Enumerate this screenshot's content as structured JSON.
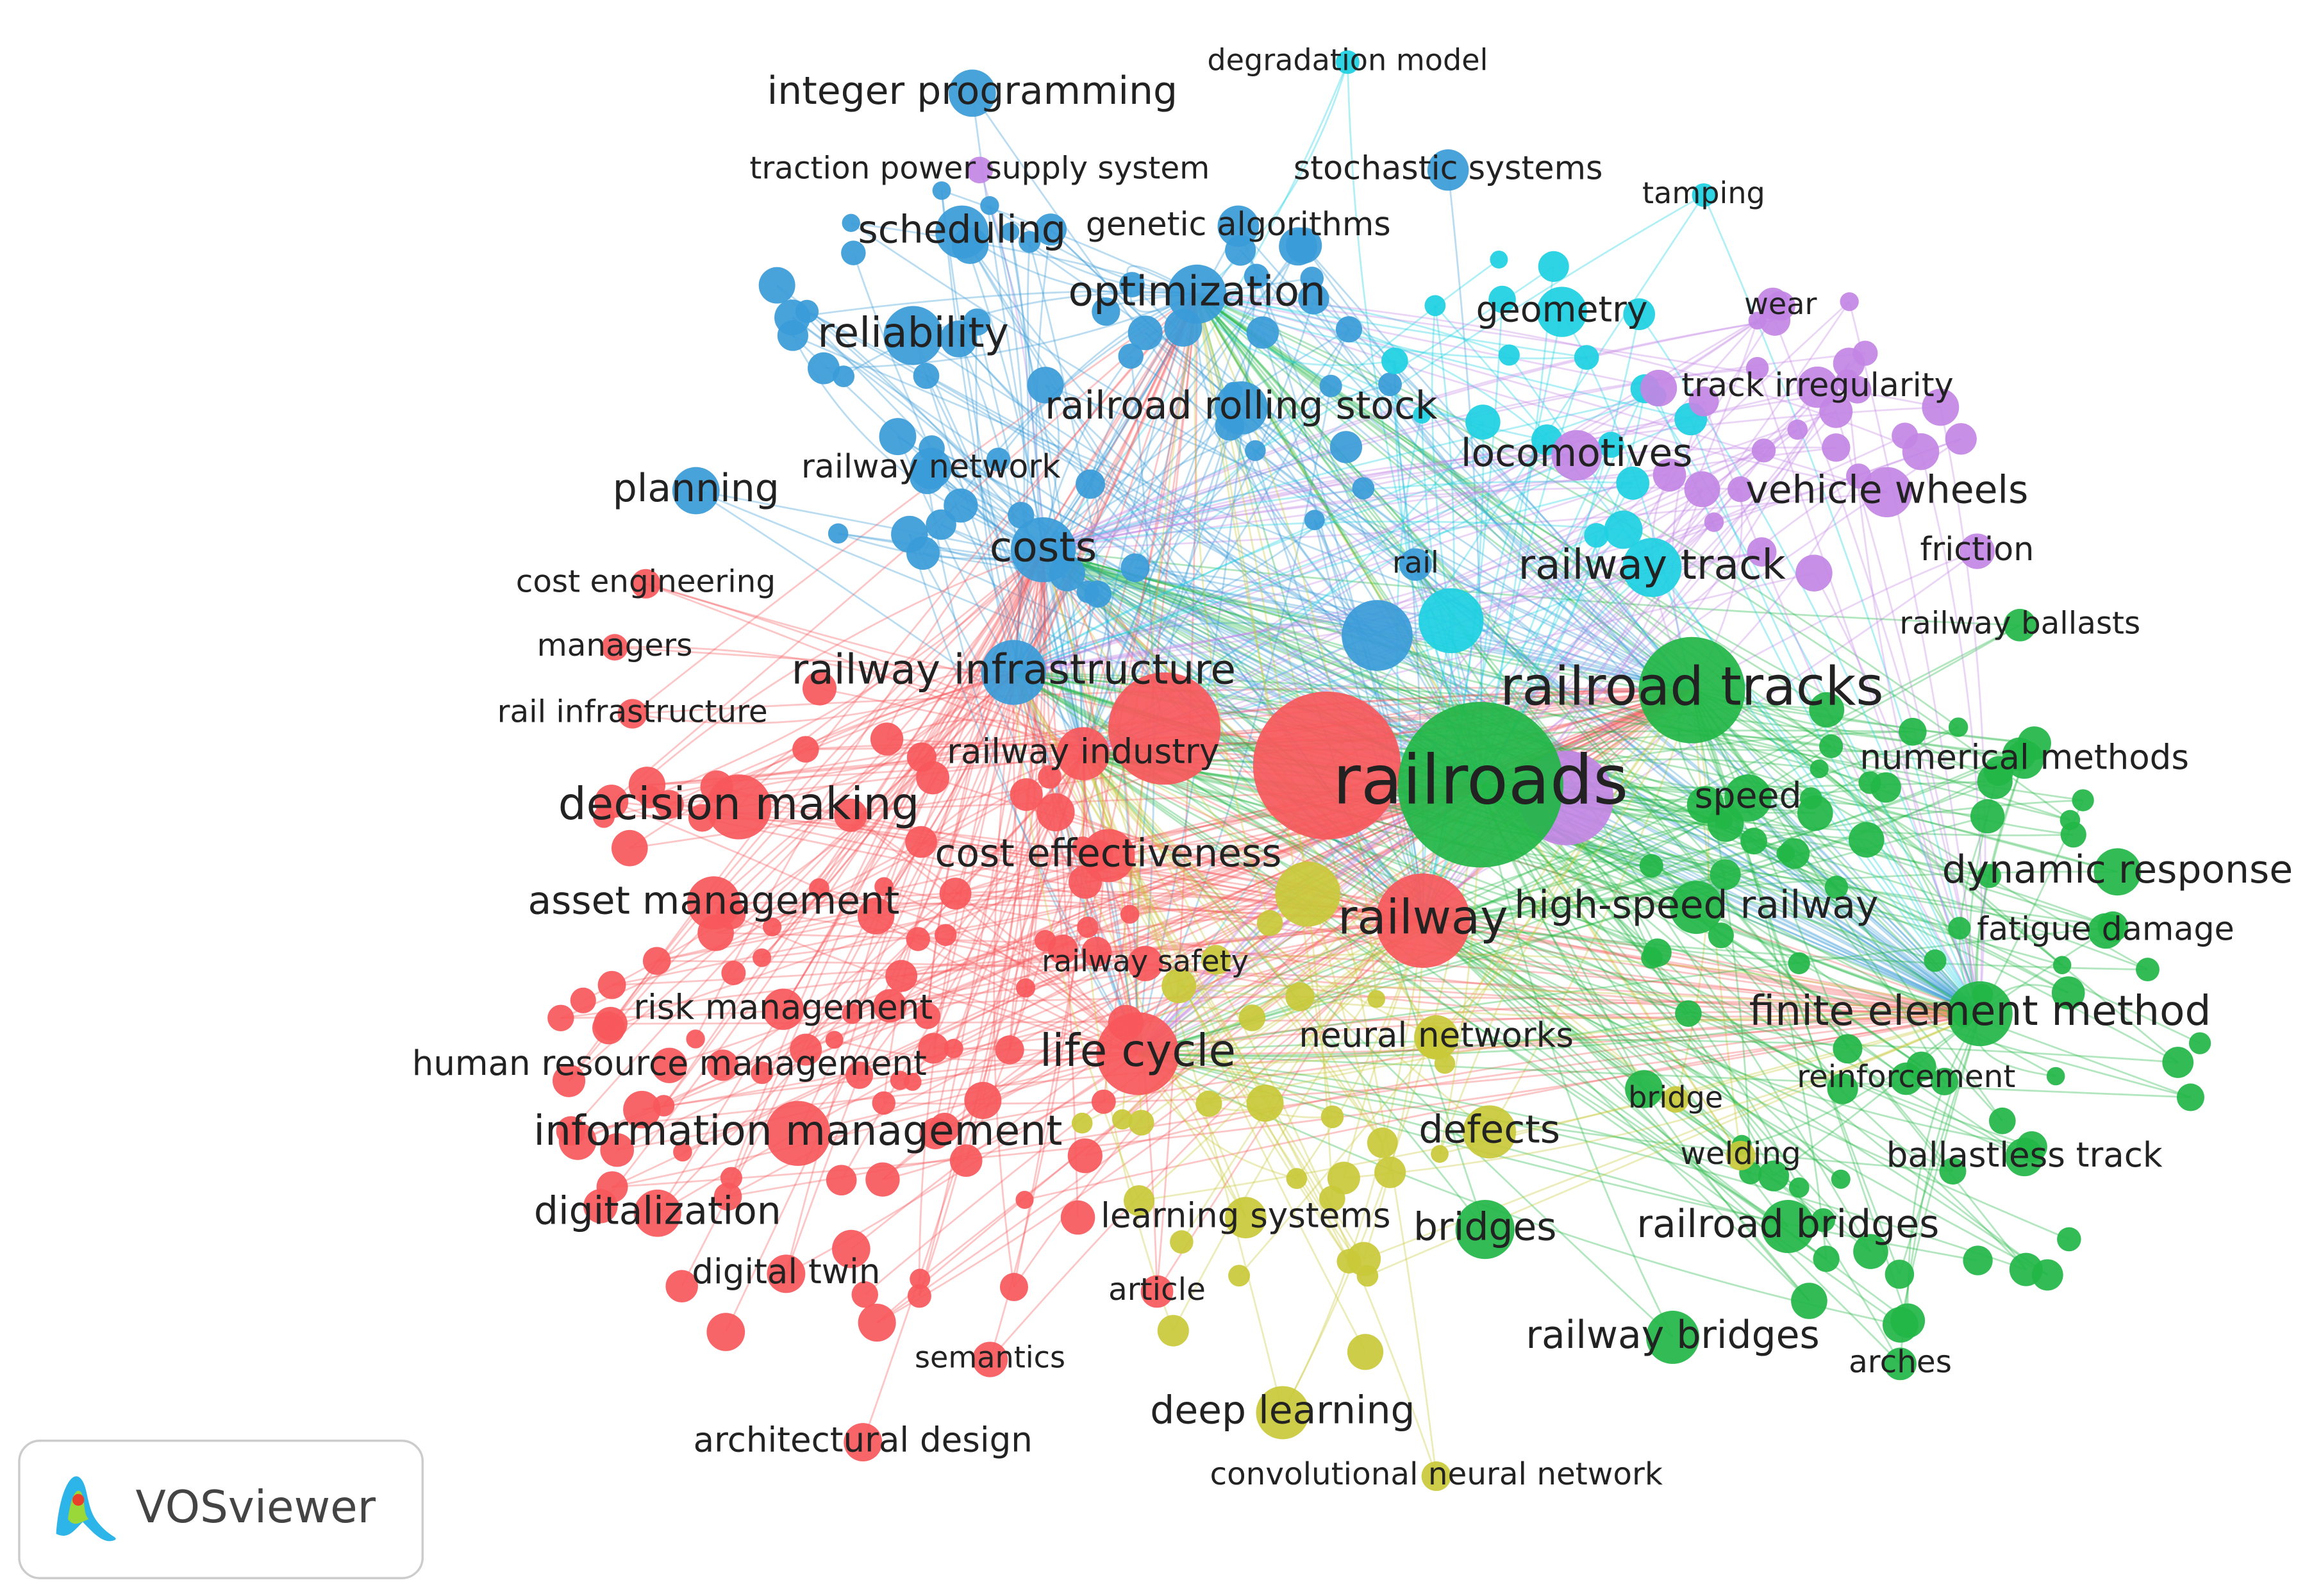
{
  "nodes": [
    {
      "label": "degradation model"
    },
    {
      "label": "integer programming"
    },
    {
      "label": "traction power supply system"
    },
    {
      "label": "stochastic systems"
    },
    {
      "label": "tamping"
    },
    {
      "label": "scheduling"
    },
    {
      "label": "genetic algorithms"
    },
    {
      "label": "optimization"
    },
    {
      "label": "geometry"
    },
    {
      "label": "wear"
    },
    {
      "label": "reliability"
    },
    {
      "label": "railroad rolling stock"
    },
    {
      "label": "track irregularity"
    },
    {
      "label": "locomotives"
    },
    {
      "label": "planning"
    },
    {
      "label": "railway network"
    },
    {
      "label": "vehicle wheels"
    },
    {
      "label": "costs"
    },
    {
      "label": "friction"
    },
    {
      "label": "rail"
    },
    {
      "label": "railway track"
    },
    {
      "label": "cost engineering"
    },
    {
      "label": "railway ballasts"
    },
    {
      "label": "managers"
    },
    {
      "label": "railway infrastructure"
    },
    {
      "label": "railroad tracks"
    },
    {
      "label": "rail infrastructure"
    },
    {
      "label": "railway industry"
    },
    {
      "label": "railroads"
    },
    {
      "label": "numerical methods"
    },
    {
      "label": "decision making"
    },
    {
      "label": "speed"
    },
    {
      "label": "cost effectiveness"
    },
    {
      "label": "dynamic response"
    },
    {
      "label": "asset management"
    },
    {
      "label": "railway"
    },
    {
      "label": "high-speed railway"
    },
    {
      "label": "fatigue damage"
    },
    {
      "label": "railway safety"
    },
    {
      "label": "risk management"
    },
    {
      "label": "neural networks"
    },
    {
      "label": "finite element method"
    },
    {
      "label": "life cycle"
    },
    {
      "label": "human resource management"
    },
    {
      "label": "reinforcement"
    },
    {
      "label": "bridge"
    },
    {
      "label": "defects"
    },
    {
      "label": "information management"
    },
    {
      "label": "welding"
    },
    {
      "label": "ballastless track"
    },
    {
      "label": "digitalization"
    },
    {
      "label": "learning systems"
    },
    {
      "label": "bridges"
    },
    {
      "label": "railroad bridges"
    },
    {
      "label": "digital twin"
    },
    {
      "label": "article"
    },
    {
      "label": "railway bridges"
    },
    {
      "label": "arches"
    },
    {
      "label": "semantics"
    },
    {
      "label": "deep learning"
    },
    {
      "label": "architectural design"
    },
    {
      "label": "convolutional neural network"
    }
  ],
  "logo": {
    "text": "VOSviewer"
  }
}
